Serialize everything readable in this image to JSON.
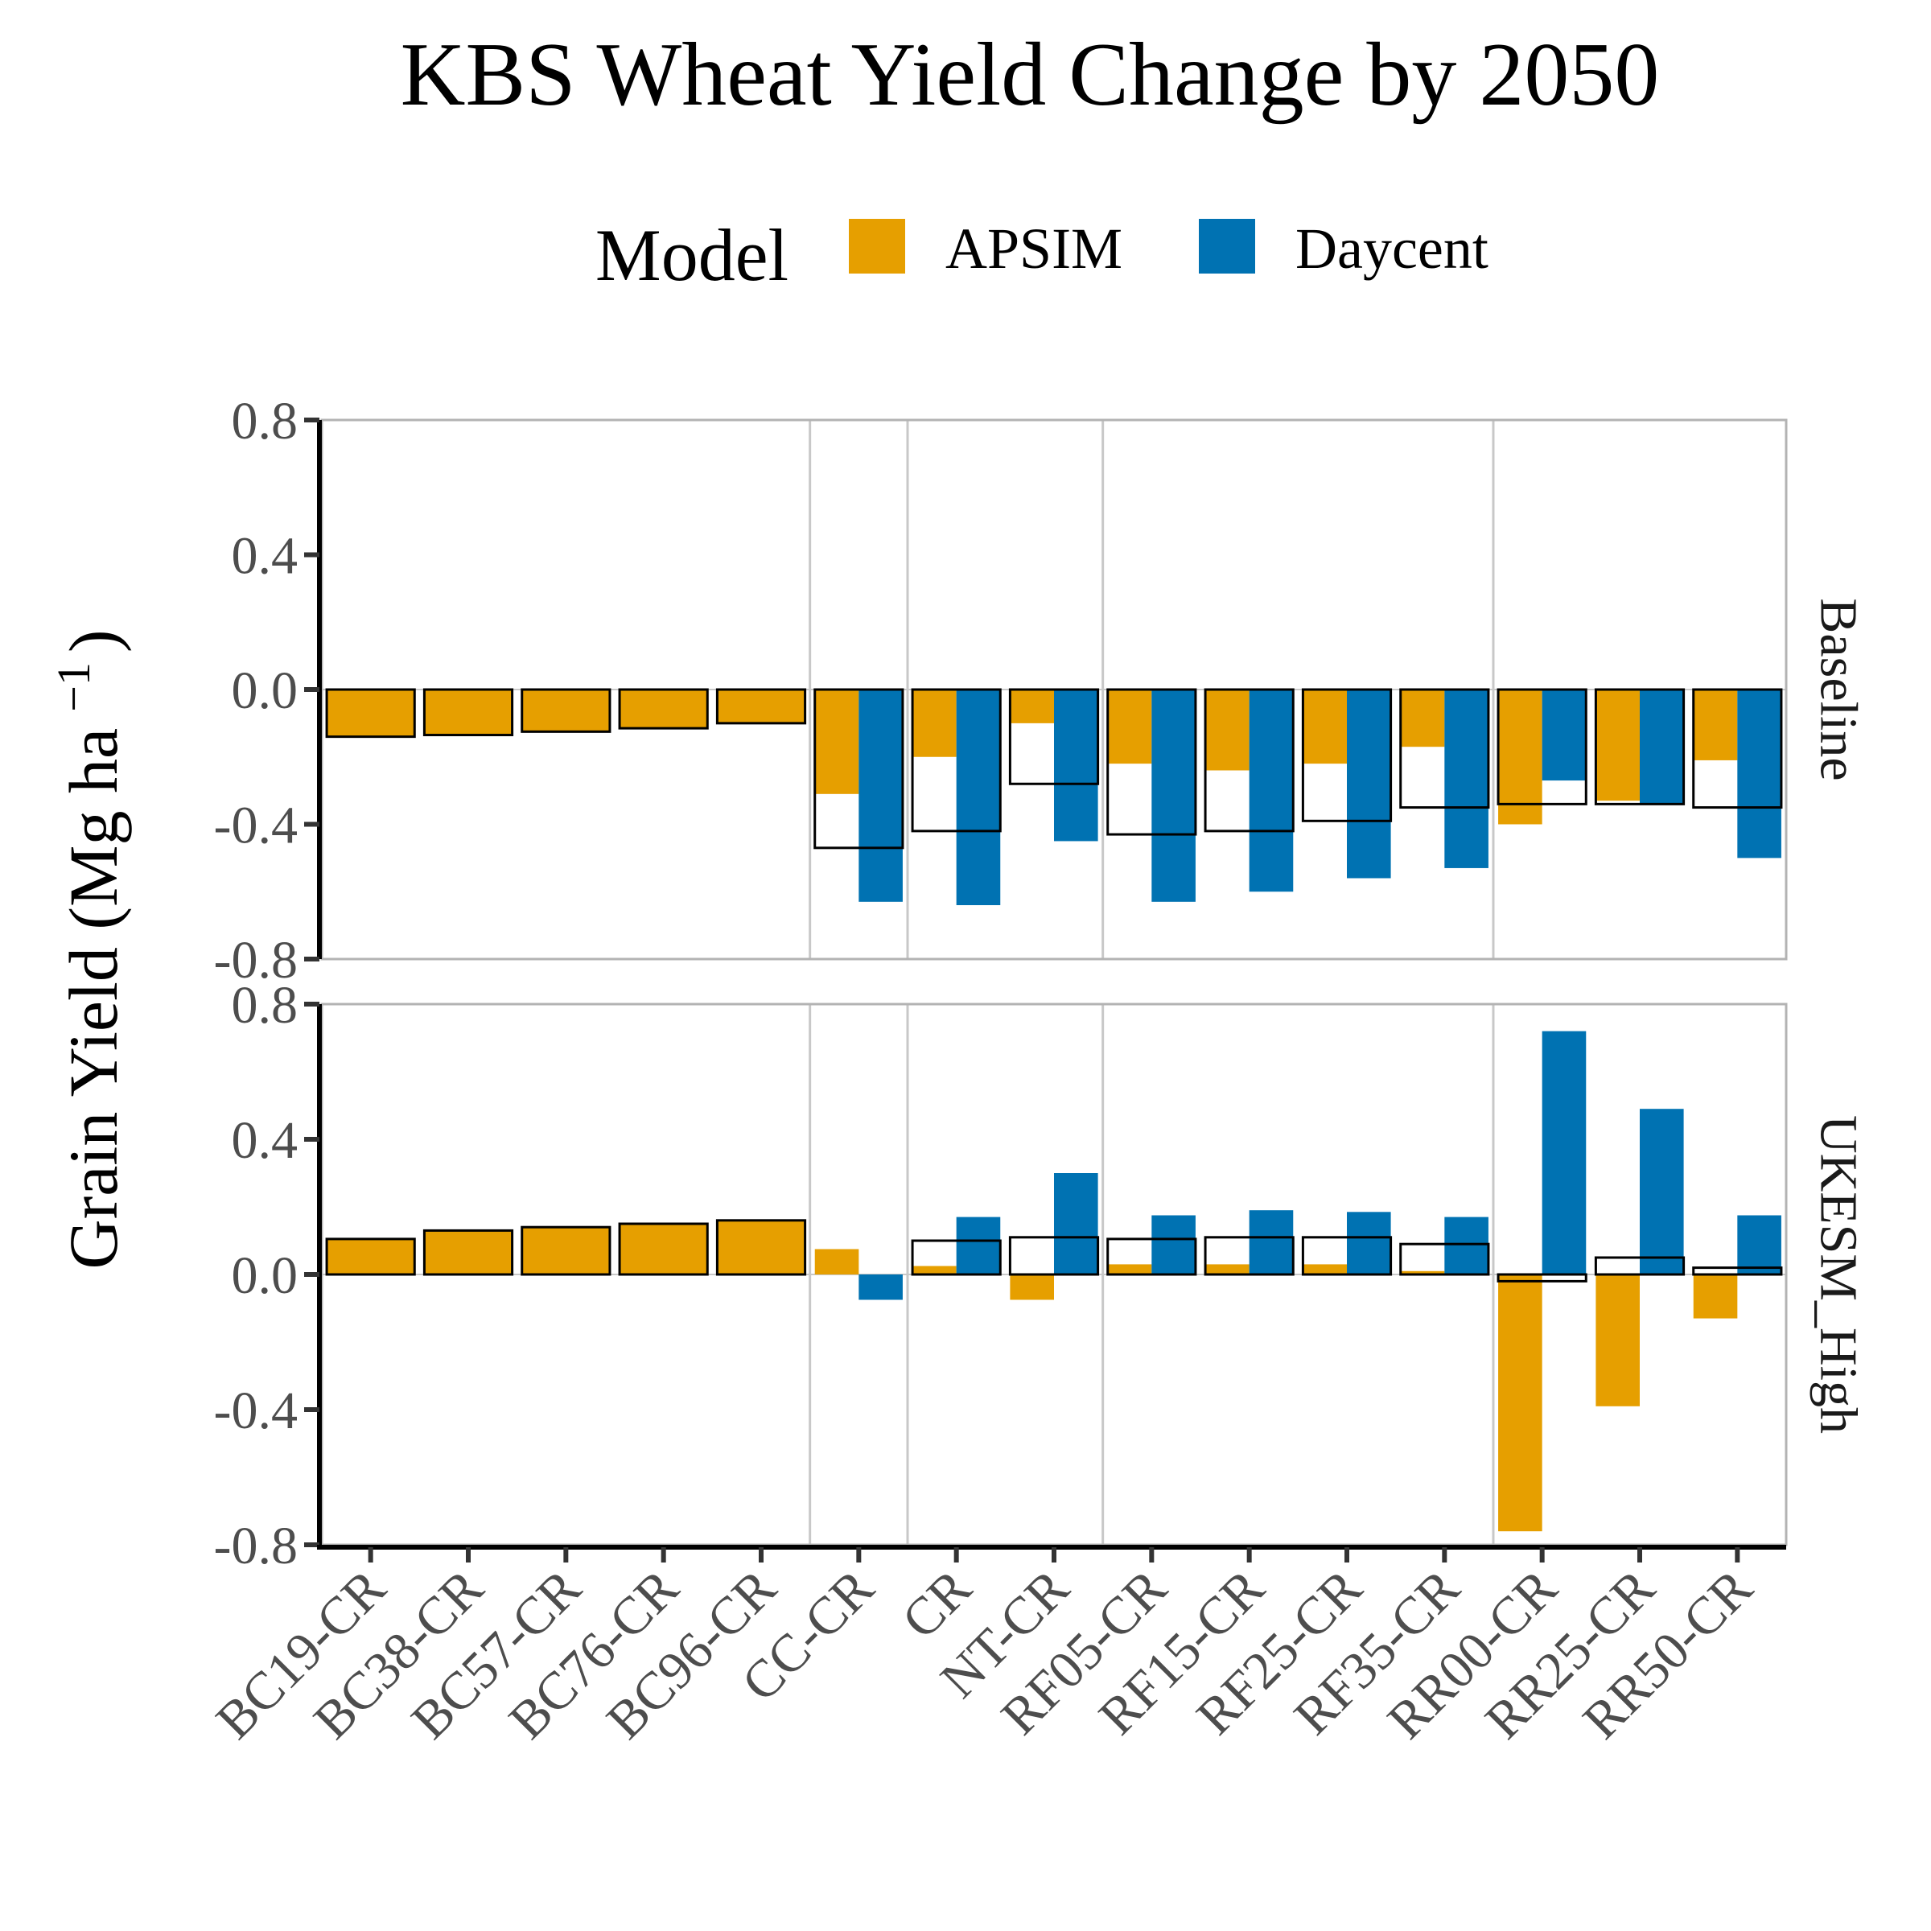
{
  "chart_data": {
    "type": "bar",
    "title": "KBS Wheat Yield Change by 2050",
    "ylabel": "Grain Yield (Mg ha",
    "ylabel_sup": "−1",
    "ylabel_close": ")",
    "xlabel": "",
    "ylim": [
      -0.8,
      0.8
    ],
    "yticks": [
      -0.8,
      -0.4,
      0.0,
      0.4,
      0.8
    ],
    "ytick_labels": [
      "-0.8",
      "-0.4",
      "0.0",
      "0.4",
      "0.8"
    ],
    "legend": {
      "title": "Model",
      "placement": "top",
      "entries": [
        {
          "label": "APSIM",
          "color": "#E69F00"
        },
        {
          "label": "Daycent",
          "color": "#0072B2"
        }
      ]
    },
    "overlay": "black-outlined unfilled bar = mean of models",
    "categories": [
      "BC19-CR",
      "BC38-CR",
      "BC57-CR",
      "BC76-CR",
      "BC96-CR",
      "CC-CR",
      "CR",
      "NT-CR",
      "RF05-CR",
      "RF15-CR",
      "RF25-CR",
      "RF35-CR",
      "RR00-CR",
      "RR25-CR",
      "RR50-CR"
    ],
    "group_separators_after": [
      4,
      5,
      7,
      11
    ],
    "grid": "vertical lines between scenario groups",
    "panels": [
      {
        "label": "Baseline",
        "series": [
          {
            "name": "APSIM",
            "values": [
              -0.14,
              -0.135,
              -0.125,
              -0.115,
              -0.1,
              -0.31,
              -0.2,
              -0.1,
              -0.22,
              -0.24,
              -0.22,
              -0.17,
              -0.4,
              -0.33,
              -0.21
            ]
          },
          {
            "name": "Daycent",
            "values": [
              null,
              null,
              null,
              null,
              null,
              -0.63,
              -0.64,
              -0.45,
              -0.63,
              -0.6,
              -0.56,
              -0.53,
              -0.27,
              -0.34,
              -0.5
            ]
          }
        ],
        "mean": [
          -0.14,
          -0.135,
          -0.125,
          -0.115,
          -0.1,
          -0.47,
          -0.42,
          -0.28,
          -0.43,
          -0.42,
          -0.39,
          -0.35,
          -0.34,
          -0.34,
          -0.35
        ]
      },
      {
        "label": "UKESM_High",
        "series": [
          {
            "name": "APSIM",
            "values": [
              0.105,
              0.13,
              0.14,
              0.15,
              0.16,
              0.075,
              0.025,
              -0.075,
              0.03,
              0.03,
              0.03,
              0.01,
              -0.76,
              -0.39,
              -0.13
            ]
          },
          {
            "name": "Daycent",
            "values": [
              null,
              null,
              null,
              null,
              null,
              -0.075,
              0.17,
              0.3,
              0.175,
              0.19,
              0.185,
              0.17,
              0.72,
              0.49,
              0.175
            ]
          }
        ],
        "mean": [
          0.105,
          0.13,
          0.14,
          0.15,
          0.16,
          0.0,
          0.1,
          0.11,
          0.105,
          0.11,
          0.11,
          0.09,
          -0.02,
          0.05,
          0.02
        ]
      }
    ]
  }
}
